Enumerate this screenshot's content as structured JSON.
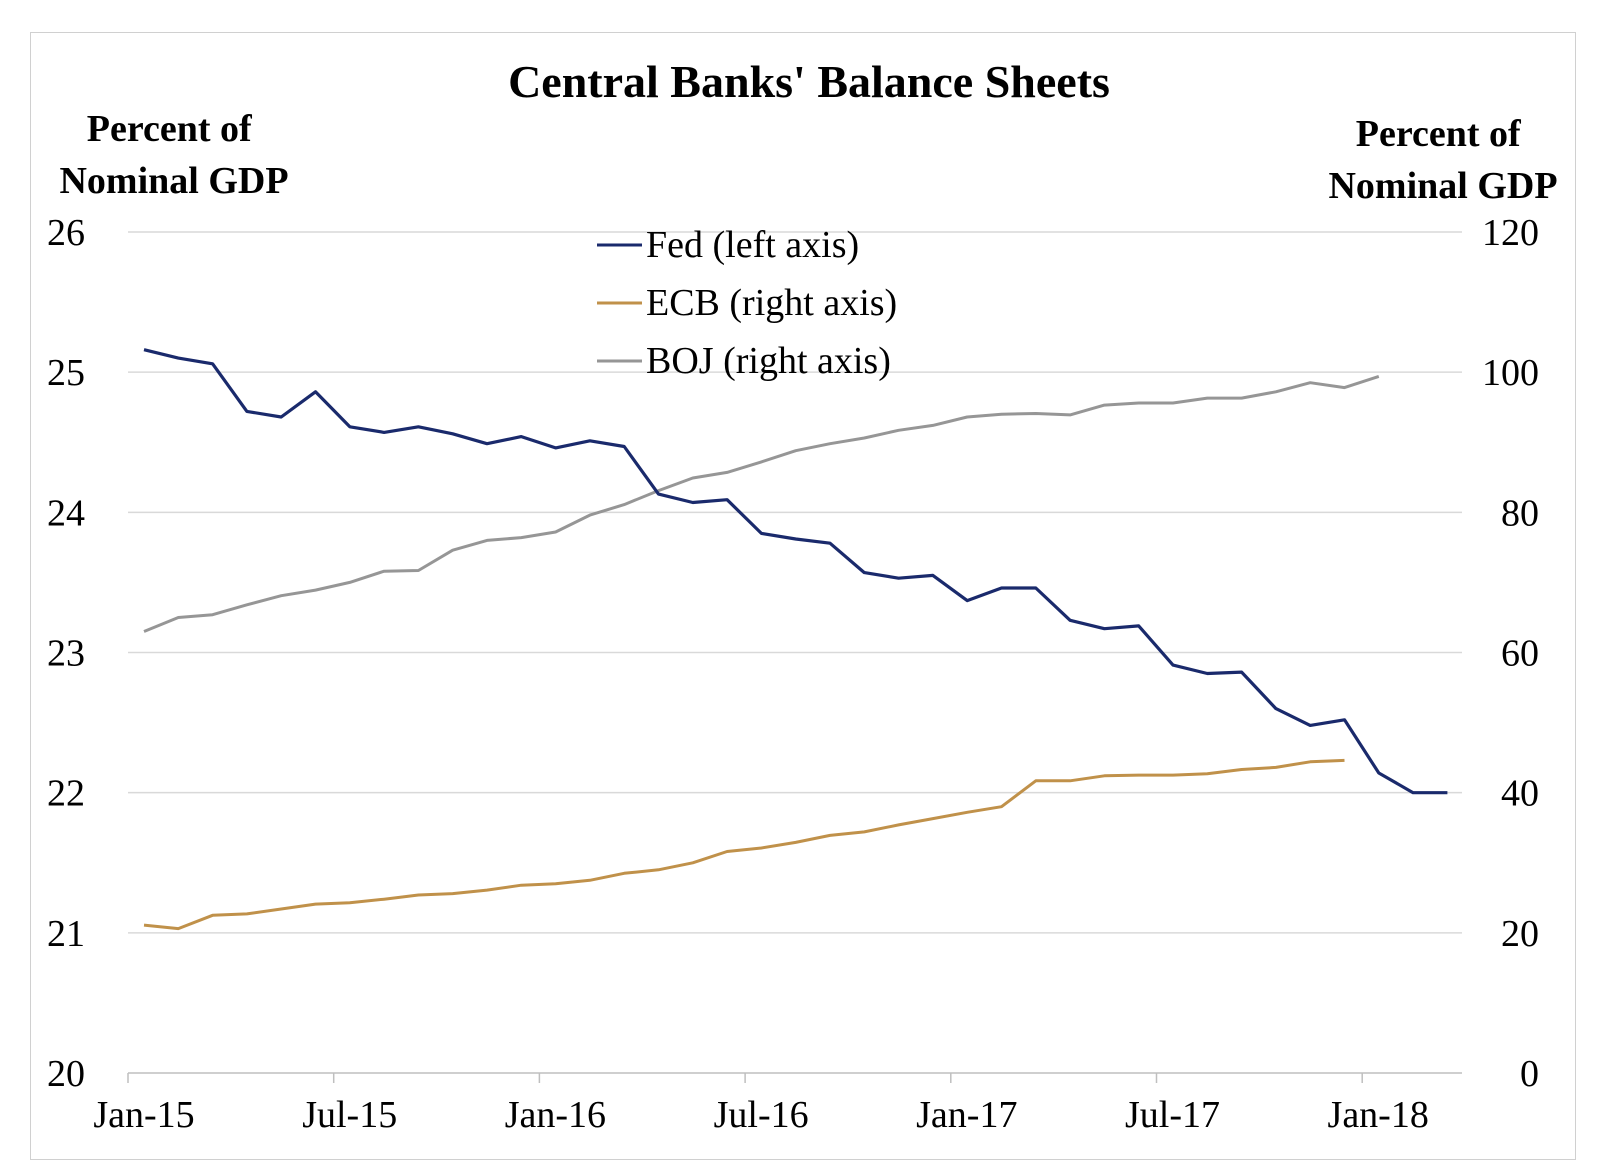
{
  "chart_data": {
    "type": "line",
    "title": "Central Banks' Balance Sheets",
    "ylabel_left": [
      "Percent of",
      "Nominal GDP"
    ],
    "ylabel_right": [
      "Percent of",
      "Nominal GDP"
    ],
    "y_left_range": [
      20,
      26
    ],
    "y_left_ticks": [
      "20",
      "21",
      "22",
      "23",
      "24",
      "25",
      "26"
    ],
    "y_right_range": [
      0,
      120
    ],
    "y_right_ticks": [
      "0",
      "20",
      "40",
      "60",
      "80",
      "100",
      "120"
    ],
    "x_tick_labels": [
      "Jan-15",
      "Jul-15",
      "Jan-16",
      "Jul-16",
      "Jan-17",
      "Jul-17",
      "Jan-18"
    ],
    "grid": "horizontal",
    "legend_position": "top-center",
    "x_start_month": "Jan-15",
    "series": [
      {
        "name": "Fed (left axis)",
        "axis": "left",
        "color": "#1a2a6c",
        "start": "Jan-15",
        "values": [
          25.16,
          25.1,
          25.06,
          24.72,
          24.68,
          24.86,
          24.61,
          24.57,
          24.61,
          24.56,
          24.49,
          24.54,
          24.46,
          24.51,
          24.47,
          24.13,
          24.07,
          24.09,
          23.85,
          23.81,
          23.78,
          23.57,
          23.53,
          23.55,
          23.37,
          23.46,
          23.46,
          23.23,
          23.17,
          23.19,
          22.91,
          22.85,
          22.86,
          22.6,
          22.48,
          22.52,
          22.14,
          22.0,
          22.0
        ]
      },
      {
        "name": "ECB (right axis)",
        "axis": "right",
        "color": "#c0914a",
        "start": "Jan-15",
        "values": [
          21.1,
          20.6,
          22.5,
          22.7,
          23.4,
          24.1,
          24.3,
          24.8,
          25.4,
          25.6,
          26.1,
          26.8,
          27.0,
          27.5,
          28.5,
          29.0,
          30.0,
          31.6,
          32.1,
          32.9,
          33.9,
          34.4,
          35.4,
          36.3,
          37.2,
          38.0,
          41.7,
          41.7,
          42.4,
          42.5,
          42.5,
          42.7,
          43.3,
          43.6,
          44.4,
          44.6
        ]
      },
      {
        "name": "BOJ (right axis)",
        "axis": "right",
        "color": "#969696",
        "start": "Jan-15",
        "values": [
          63.0,
          65.0,
          65.4,
          66.8,
          68.1,
          68.9,
          70.0,
          71.6,
          71.7,
          74.6,
          76.0,
          76.4,
          77.2,
          79.6,
          81.1,
          83.1,
          84.9,
          85.7,
          87.2,
          88.8,
          89.8,
          90.6,
          91.7,
          92.4,
          93.6,
          94.0,
          94.1,
          93.9,
          95.3,
          95.6,
          95.6,
          96.3,
          96.3,
          97.2,
          98.5,
          97.8,
          99.4
        ]
      }
    ]
  }
}
